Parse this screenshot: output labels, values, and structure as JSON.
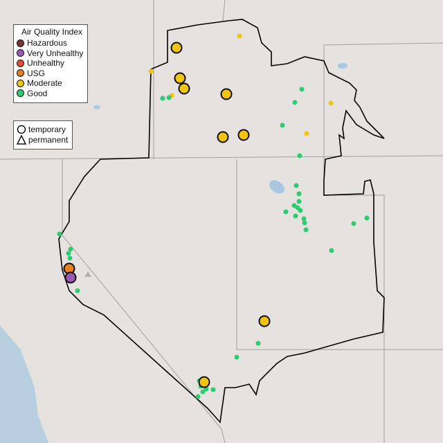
{
  "legend": {
    "title": "Air Quality Index",
    "categories": [
      {
        "label": "Hazardous",
        "color": "#7e3434"
      },
      {
        "label": "Very Unhealthy",
        "color": "#9b59b6"
      },
      {
        "label": "Unhealthy",
        "color": "#e74c3c"
      },
      {
        "label": "USG",
        "color": "#e67e22"
      },
      {
        "label": "Moderate",
        "color": "#f1c40f"
      },
      {
        "label": "Good",
        "color": "#2ecc71"
      }
    ]
  },
  "shape_legend": {
    "temporary": "temporary",
    "permanent": "permanent"
  },
  "colors": {
    "background": "#e6e2df",
    "boundary": "#000000",
    "state_lines": "#9a9a9a",
    "water": "#a9c7e0"
  }
}
